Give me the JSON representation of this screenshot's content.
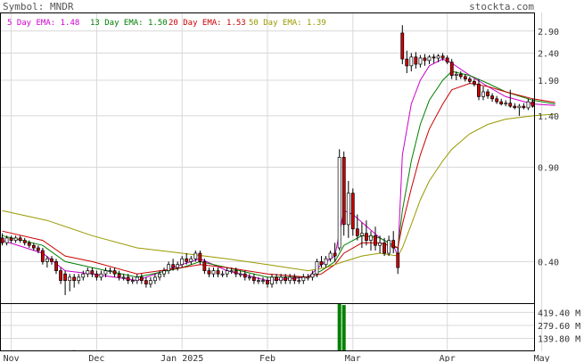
{
  "header": {
    "symbol_text": "Symbol: MNDR",
    "brand": "stockta.com"
  },
  "legend": [
    {
      "text": "5 Day EMA: 1.48",
      "color": "#cc00cc"
    },
    {
      "text": "13 Day EMA: 1.50",
      "color": "#008000"
    },
    {
      "text": "20 Day EMA: 1.53",
      "color": "#cc0000"
    },
    {
      "text": "50 Day EMA: 1.39",
      "color": "#999900"
    }
  ],
  "colors": {
    "up_candle": "#ffffff",
    "down_candle": "#cc0000",
    "candle_outline": "#000000",
    "volume_bar": "#008000",
    "grid": "#d8d8d8",
    "frame": "#000000"
  },
  "chart_data": [
    {
      "type": "candlestick",
      "title": "",
      "y_scale": "log",
      "ylim": [
        0.28,
        3.4
      ],
      "y_ticks": [
        2.9,
        2.4,
        1.9,
        1.4,
        0.9,
        0.4
      ],
      "y_tick_labels": [
        "2.90",
        "2.40",
        "1.90",
        "1.40",
        "0.90",
        "0.40"
      ],
      "x_labels": [
        "Nov",
        "Dec",
        "Jan 2025",
        "Feb",
        "Mar",
        "Apr",
        "May"
      ],
      "x_label_index": [
        2,
        21,
        40,
        59,
        78,
        99,
        120
      ],
      "ohlc": [
        [
          0.49,
          0.51,
          0.46,
          0.47
        ],
        [
          0.47,
          0.5,
          0.46,
          0.49
        ],
        [
          0.49,
          0.5,
          0.47,
          0.48
        ],
        [
          0.48,
          0.5,
          0.47,
          0.49
        ],
        [
          0.49,
          0.5,
          0.47,
          0.48
        ],
        [
          0.48,
          0.49,
          0.46,
          0.47
        ],
        [
          0.47,
          0.48,
          0.45,
          0.46
        ],
        [
          0.46,
          0.47,
          0.44,
          0.45
        ],
        [
          0.45,
          0.46,
          0.43,
          0.44
        ],
        [
          0.44,
          0.45,
          0.39,
          0.4
        ],
        [
          0.4,
          0.42,
          0.38,
          0.41
        ],
        [
          0.41,
          0.42,
          0.39,
          0.4
        ],
        [
          0.4,
          0.41,
          0.36,
          0.37
        ],
        [
          0.37,
          0.38,
          0.33,
          0.34
        ],
        [
          0.36,
          0.37,
          0.3,
          0.34
        ],
        [
          0.34,
          0.36,
          0.31,
          0.35
        ],
        [
          0.35,
          0.36,
          0.32,
          0.34
        ],
        [
          0.34,
          0.36,
          0.33,
          0.35
        ],
        [
          0.35,
          0.37,
          0.34,
          0.36
        ],
        [
          0.36,
          0.38,
          0.35,
          0.37
        ],
        [
          0.37,
          0.38,
          0.35,
          0.36
        ],
        [
          0.36,
          0.37,
          0.34,
          0.35
        ],
        [
          0.35,
          0.37,
          0.34,
          0.36
        ],
        [
          0.36,
          0.38,
          0.35,
          0.37
        ],
        [
          0.37,
          0.38,
          0.36,
          0.37
        ],
        [
          0.37,
          0.38,
          0.35,
          0.36
        ],
        [
          0.36,
          0.37,
          0.34,
          0.35
        ],
        [
          0.35,
          0.36,
          0.34,
          0.35
        ],
        [
          0.35,
          0.36,
          0.33,
          0.34
        ],
        [
          0.34,
          0.35,
          0.33,
          0.34
        ],
        [
          0.34,
          0.36,
          0.33,
          0.35
        ],
        [
          0.35,
          0.36,
          0.33,
          0.34
        ],
        [
          0.34,
          0.35,
          0.32,
          0.33
        ],
        [
          0.33,
          0.35,
          0.32,
          0.34
        ],
        [
          0.34,
          0.36,
          0.33,
          0.35
        ],
        [
          0.35,
          0.37,
          0.34,
          0.36
        ],
        [
          0.36,
          0.38,
          0.35,
          0.37
        ],
        [
          0.37,
          0.4,
          0.36,
          0.39
        ],
        [
          0.39,
          0.41,
          0.37,
          0.38
        ],
        [
          0.38,
          0.4,
          0.37,
          0.39
        ],
        [
          0.39,
          0.42,
          0.38,
          0.41
        ],
        [
          0.41,
          0.43,
          0.39,
          0.4
        ],
        [
          0.4,
          0.42,
          0.39,
          0.41
        ],
        [
          0.41,
          0.44,
          0.4,
          0.43
        ],
        [
          0.43,
          0.44,
          0.39,
          0.4
        ],
        [
          0.4,
          0.41,
          0.36,
          0.37
        ],
        [
          0.37,
          0.38,
          0.35,
          0.36
        ],
        [
          0.36,
          0.38,
          0.35,
          0.37
        ],
        [
          0.37,
          0.38,
          0.35,
          0.36
        ],
        [
          0.36,
          0.37,
          0.35,
          0.36
        ],
        [
          0.36,
          0.38,
          0.35,
          0.37
        ],
        [
          0.37,
          0.38,
          0.36,
          0.37
        ],
        [
          0.37,
          0.38,
          0.35,
          0.36
        ],
        [
          0.36,
          0.37,
          0.35,
          0.36
        ],
        [
          0.36,
          0.37,
          0.34,
          0.35
        ],
        [
          0.35,
          0.36,
          0.34,
          0.35
        ],
        [
          0.35,
          0.36,
          0.33,
          0.34
        ],
        [
          0.34,
          0.35,
          0.33,
          0.34
        ],
        [
          0.34,
          0.35,
          0.33,
          0.34
        ],
        [
          0.34,
          0.35,
          0.32,
          0.33
        ],
        [
          0.33,
          0.36,
          0.32,
          0.35
        ],
        [
          0.35,
          0.36,
          0.33,
          0.34
        ],
        [
          0.34,
          0.36,
          0.33,
          0.35
        ],
        [
          0.35,
          0.36,
          0.33,
          0.34
        ],
        [
          0.34,
          0.36,
          0.33,
          0.35
        ],
        [
          0.35,
          0.36,
          0.33,
          0.34
        ],
        [
          0.34,
          0.35,
          0.33,
          0.34
        ],
        [
          0.34,
          0.36,
          0.33,
          0.35
        ],
        [
          0.35,
          0.36,
          0.34,
          0.35
        ],
        [
          0.35,
          0.37,
          0.34,
          0.36
        ],
        [
          0.36,
          0.41,
          0.35,
          0.4
        ],
        [
          0.4,
          0.42,
          0.38,
          0.39
        ],
        [
          0.39,
          0.42,
          0.38,
          0.41
        ],
        [
          0.41,
          0.44,
          0.4,
          0.43
        ],
        [
          0.43,
          0.47,
          0.4,
          0.42
        ],
        [
          0.45,
          1.05,
          0.44,
          0.98
        ],
        [
          0.98,
          1.03,
          0.5,
          0.55
        ],
        [
          0.55,
          0.8,
          0.49,
          0.72
        ],
        [
          0.72,
          0.75,
          0.5,
          0.53
        ],
        [
          0.53,
          0.6,
          0.48,
          0.5
        ],
        [
          0.5,
          0.56,
          0.45,
          0.51
        ],
        [
          0.51,
          0.57,
          0.46,
          0.48
        ],
        [
          0.48,
          0.52,
          0.44,
          0.5
        ],
        [
          0.5,
          0.54,
          0.44,
          0.46
        ],
        [
          0.46,
          0.5,
          0.43,
          0.47
        ],
        [
          0.47,
          0.49,
          0.42,
          0.43
        ],
        [
          0.43,
          0.5,
          0.42,
          0.48
        ],
        [
          0.48,
          0.52,
          0.43,
          0.45
        ],
        [
          0.43,
          0.45,
          0.36,
          0.38
        ],
        [
          2.85,
          3.05,
          2.18,
          2.28
        ],
        [
          2.28,
          2.45,
          2.02,
          2.15
        ],
        [
          2.15,
          2.4,
          2.05,
          2.32
        ],
        [
          2.32,
          2.42,
          2.1,
          2.18
        ],
        [
          2.18,
          2.36,
          2.12,
          2.3
        ],
        [
          2.3,
          2.38,
          2.15,
          2.25
        ],
        [
          2.25,
          2.36,
          2.18,
          2.32
        ],
        [
          2.32,
          2.38,
          2.2,
          2.3
        ],
        [
          2.3,
          2.38,
          2.22,
          2.34
        ],
        [
          2.34,
          2.4,
          2.25,
          2.3
        ],
        [
          2.3,
          2.35,
          2.18,
          2.22
        ],
        [
          2.22,
          2.28,
          1.92,
          1.98
        ],
        [
          1.98,
          2.05,
          1.9,
          2.0
        ],
        [
          2.0,
          2.05,
          1.92,
          1.96
        ],
        [
          1.96,
          2.0,
          1.88,
          1.92
        ],
        [
          1.92,
          1.96,
          1.85,
          1.88
        ],
        [
          1.88,
          1.92,
          1.8,
          1.84
        ],
        [
          1.84,
          1.92,
          1.6,
          1.65
        ],
        [
          1.65,
          1.8,
          1.6,
          1.72
        ],
        [
          1.72,
          1.76,
          1.62,
          1.66
        ],
        [
          1.66,
          1.7,
          1.58,
          1.62
        ],
        [
          1.62,
          1.66,
          1.55,
          1.58
        ],
        [
          1.58,
          1.62,
          1.53,
          1.55
        ],
        [
          1.55,
          1.6,
          1.52,
          1.56
        ],
        [
          1.56,
          1.75,
          1.5,
          1.52
        ],
        [
          1.52,
          1.56,
          1.48,
          1.5
        ],
        [
          1.5,
          1.55,
          1.4,
          1.52
        ],
        [
          1.52,
          1.56,
          1.48,
          1.5
        ],
        [
          1.5,
          1.62,
          1.47,
          1.58
        ],
        [
          1.58,
          1.62,
          1.5,
          1.52
        ]
      ],
      "ema": [
        {
          "name": "5 Day EMA",
          "color": "#cc00cc",
          "values": [
            [
              0,
              0.48
            ],
            [
              9,
              0.43
            ],
            [
              14,
              0.37
            ],
            [
              20,
              0.36
            ],
            [
              30,
              0.34
            ],
            [
              40,
              0.39
            ],
            [
              44,
              0.41
            ],
            [
              50,
              0.37
            ],
            [
              59,
              0.34
            ],
            [
              68,
              0.35
            ],
            [
              71,
              0.39
            ],
            [
              74,
              0.42
            ],
            [
              76,
              0.62
            ],
            [
              78,
              0.6
            ],
            [
              84,
              0.49
            ],
            [
              87,
              0.46
            ],
            [
              88,
              0.42
            ],
            [
              89,
              1.0
            ],
            [
              91,
              1.55
            ],
            [
              93,
              1.9
            ],
            [
              95,
              2.15
            ],
            [
              98,
              2.28
            ],
            [
              100,
              2.2
            ],
            [
              104,
              1.98
            ],
            [
              108,
              1.8
            ],
            [
              112,
              1.65
            ],
            [
              118,
              1.55
            ],
            [
              123,
              1.53
            ]
          ]
        },
        {
          "name": "13 Day EMA",
          "color": "#008000",
          "values": [
            [
              0,
              0.5
            ],
            [
              9,
              0.46
            ],
            [
              14,
              0.4
            ],
            [
              20,
              0.38
            ],
            [
              30,
              0.35
            ],
            [
              40,
              0.38
            ],
            [
              44,
              0.4
            ],
            [
              50,
              0.38
            ],
            [
              59,
              0.35
            ],
            [
              68,
              0.35
            ],
            [
              71,
              0.37
            ],
            [
              74,
              0.4
            ],
            [
              76,
              0.46
            ],
            [
              80,
              0.5
            ],
            [
              84,
              0.49
            ],
            [
              88,
              0.45
            ],
            [
              89,
              0.62
            ],
            [
              91,
              0.95
            ],
            [
              93,
              1.3
            ],
            [
              95,
              1.6
            ],
            [
              98,
              1.9
            ],
            [
              100,
              2.05
            ],
            [
              104,
              1.98
            ],
            [
              108,
              1.85
            ],
            [
              112,
              1.72
            ],
            [
              118,
              1.6
            ],
            [
              123,
              1.55
            ]
          ]
        },
        {
          "name": "20 Day EMA",
          "color": "#cc0000",
          "values": [
            [
              0,
              0.52
            ],
            [
              9,
              0.48
            ],
            [
              14,
              0.42
            ],
            [
              20,
              0.4
            ],
            [
              30,
              0.36
            ],
            [
              40,
              0.38
            ],
            [
              44,
              0.39
            ],
            [
              50,
              0.38
            ],
            [
              59,
              0.36
            ],
            [
              68,
              0.35
            ],
            [
              71,
              0.36
            ],
            [
              74,
              0.39
            ],
            [
              76,
              0.43
            ],
            [
              80,
              0.47
            ],
            [
              84,
              0.47
            ],
            [
              88,
              0.45
            ],
            [
              89,
              0.55
            ],
            [
              91,
              0.75
            ],
            [
              93,
              1.0
            ],
            [
              95,
              1.25
            ],
            [
              98,
              1.55
            ],
            [
              100,
              1.75
            ],
            [
              104,
              1.85
            ],
            [
              108,
              1.8
            ],
            [
              112,
              1.72
            ],
            [
              118,
              1.62
            ],
            [
              123,
              1.57
            ]
          ]
        },
        {
          "name": "50 Day EMA",
          "color": "#999900",
          "values": [
            [
              0,
              0.62
            ],
            [
              10,
              0.57
            ],
            [
              20,
              0.5
            ],
            [
              30,
              0.45
            ],
            [
              40,
              0.43
            ],
            [
              50,
              0.41
            ],
            [
              59,
              0.39
            ],
            [
              68,
              0.37
            ],
            [
              72,
              0.38
            ],
            [
              76,
              0.4
            ],
            [
              80,
              0.42
            ],
            [
              84,
              0.43
            ],
            [
              88,
              0.42
            ],
            [
              89,
              0.45
            ],
            [
              91,
              0.55
            ],
            [
              93,
              0.68
            ],
            [
              95,
              0.8
            ],
            [
              98,
              0.95
            ],
            [
              100,
              1.05
            ],
            [
              104,
              1.2
            ],
            [
              108,
              1.3
            ],
            [
              112,
              1.36
            ],
            [
              118,
              1.4
            ],
            [
              123,
              1.42
            ]
          ]
        }
      ],
      "volume_unit": "M",
      "volume_ticks": [
        419.4,
        279.6,
        139.8
      ],
      "volume_tick_labels": [
        "419.40 M",
        "279.60 M",
        "139.80 M"
      ],
      "volume_ylim": [
        0,
        520
      ],
      "volume": [
        [
          16,
          12
        ],
        [
          75,
          1000
        ],
        [
          76,
          500
        ],
        [
          88,
          10
        ]
      ]
    }
  ]
}
